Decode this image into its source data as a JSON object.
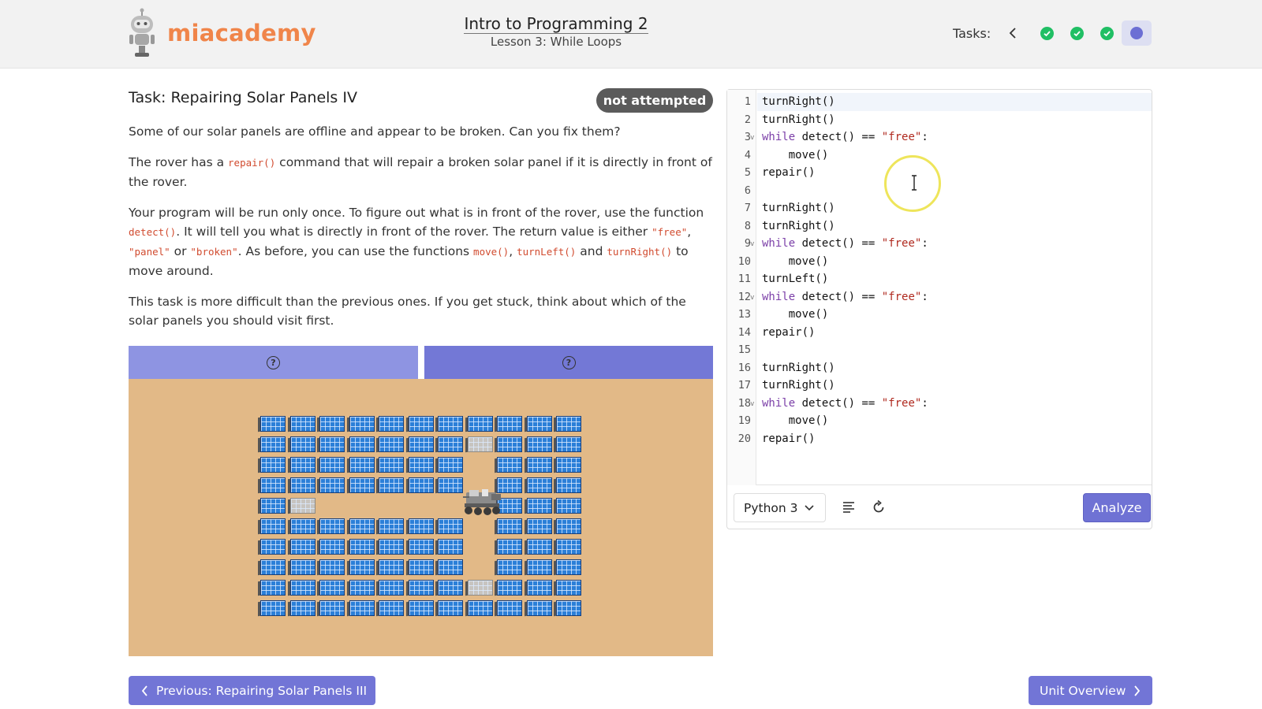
{
  "header": {
    "logo_text": "miacademy",
    "course_title": "Intro to Programming 2",
    "lesson": "Lesson 3: While Loops",
    "tasks_label": "Tasks:",
    "task_status": [
      "done",
      "done",
      "done",
      "current"
    ],
    "colors": {
      "done": "#20bf64",
      "current": "#6c6fd4",
      "logo": "#f0854a"
    }
  },
  "task": {
    "title": "Task: Repairing Solar Panels IV",
    "status": "not attempted",
    "p1": "Some of our solar panels are offline and appear to be broken. Can you fix them?",
    "p2": {
      "a": "The rover has a ",
      "code1": "repair()",
      "b": " command that will repair a broken solar panel if it is directly in front of the rover."
    },
    "p3": {
      "a": "Your program will be run only once. To figure out what is in front of the rover, use the function ",
      "code1": "detect()",
      "b": ". It will tell you what is directly in front of the rover. The return value is either ",
      "code2": "\"free\"",
      "c": ", ",
      "code3": "\"panel\"",
      "d": " or ",
      "code4": "\"broken\"",
      "e": ". As before, you can use the functions ",
      "code5": "move()",
      "f": ", ",
      "code6": "turnLeft()",
      "g": " and ",
      "code7": "turnRight()",
      "h": " to move around."
    },
    "p4": "This task is more difficult than the previous ones. If you get stuck, think about which of the solar panels you should visit first."
  },
  "game": {
    "tab_a_icon": "help-icon",
    "tab_b_icon": "help-icon",
    "help_glyph": "?",
    "grid": [
      "PPPPPPPPPPP",
      "PPPPPPPBPPP",
      "PPPPPPP.PPP",
      "PPPPPPP.PPP",
      "PB.....RPPP",
      "PPPPPPP.PPP",
      "PPPPPPP.PPP",
      "PPPPPPP.PPP",
      "PPPPPPPBPPP",
      "PPPPPPPPPPP"
    ],
    "legend": {
      "P": "panel",
      "B": "broken",
      ".": "free",
      "R": "rover"
    }
  },
  "editor": {
    "lines": [
      [
        {
          "t": "turnRight()"
        }
      ],
      [
        {
          "t": "turnRight()"
        }
      ],
      [
        {
          "t": "while",
          "c": "kw"
        },
        {
          "t": " detect() == "
        },
        {
          "t": "\"free\"",
          "c": "str"
        },
        {
          "t": ":"
        }
      ],
      [
        {
          "t": "    move()"
        }
      ],
      [
        {
          "t": "repair()"
        }
      ],
      [],
      [
        {
          "t": "turnRight()"
        }
      ],
      [
        {
          "t": "turnRight()"
        }
      ],
      [
        {
          "t": "while",
          "c": "kw"
        },
        {
          "t": " detect() == "
        },
        {
          "t": "\"free\"",
          "c": "str"
        },
        {
          "t": ":"
        }
      ],
      [
        {
          "t": "    move()"
        }
      ],
      [
        {
          "t": "turnLeft()"
        }
      ],
      [
        {
          "t": "while",
          "c": "kw"
        },
        {
          "t": " detect() == "
        },
        {
          "t": "\"free\"",
          "c": "str"
        },
        {
          "t": ":"
        }
      ],
      [
        {
          "t": "    move()"
        }
      ],
      [
        {
          "t": "repair()"
        }
      ],
      [],
      [
        {
          "t": "turnRight()"
        }
      ],
      [
        {
          "t": "turnRight()"
        }
      ],
      [
        {
          "t": "while",
          "c": "kw"
        },
        {
          "t": " detect() == "
        },
        {
          "t": "\"free\"",
          "c": "str"
        },
        {
          "t": ":"
        }
      ],
      [
        {
          "t": "    move()"
        }
      ],
      [
        {
          "t": "repair()"
        }
      ]
    ],
    "fold_lines": [
      3,
      9,
      12,
      18
    ],
    "fold_glyph": "v",
    "language": "Python 3",
    "analyze_label": "Analyze",
    "format_icon": "format-lines-icon",
    "reset_icon": "reset-icon"
  },
  "nav": {
    "prev_label": "Previous: Repairing Solar Panels III",
    "next_label": "Unit Overview"
  }
}
